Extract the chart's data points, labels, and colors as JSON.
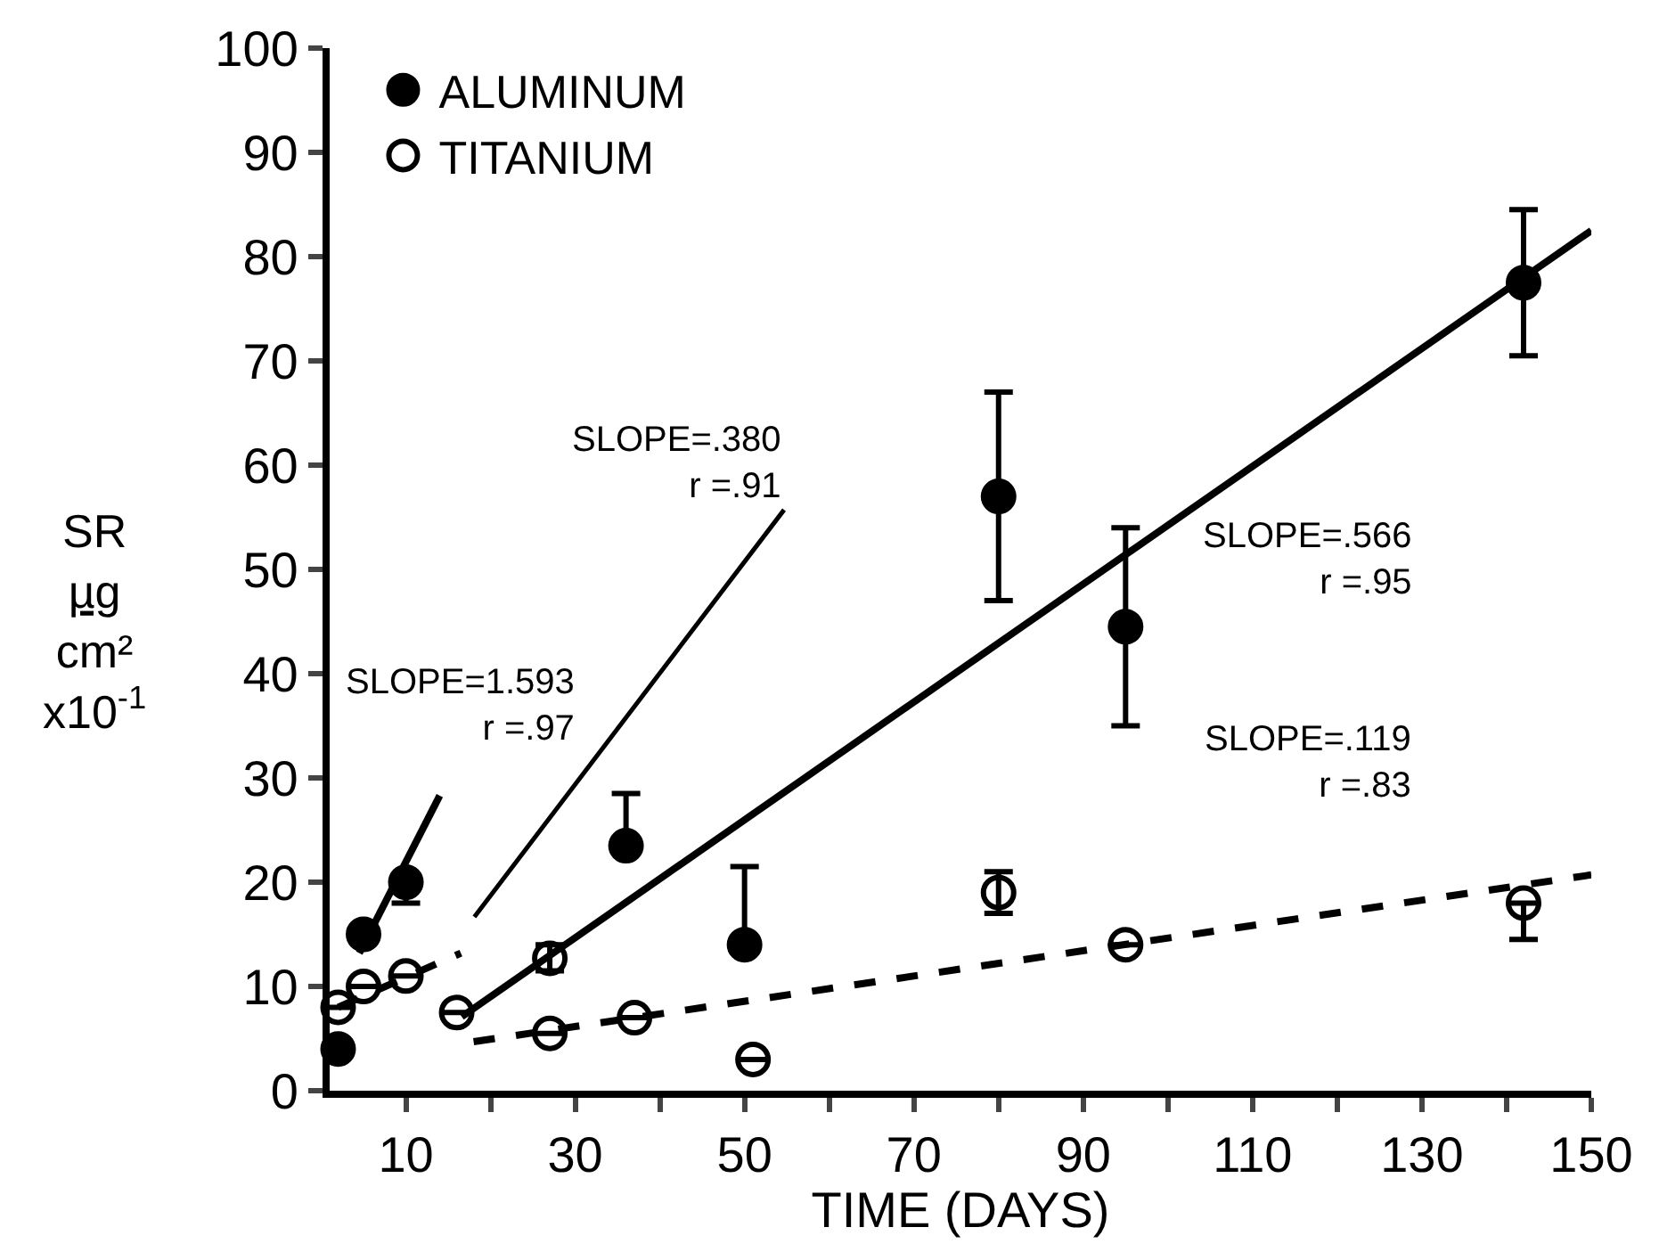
{
  "chart_data": {
    "type": "scatter",
    "xlabel": "TIME (DAYS)",
    "ylabel": "SR\nµg\ncm²\nx10$^{-1}$",
    "xlim": [
      1,
      150
    ],
    "ylim": [
      0,
      100
    ],
    "xticks": [
      10,
      {
        "value": 20,
        "label": null
      },
      30,
      {
        "value": 40,
        "label": null
      },
      50,
      {
        "value": 60,
        "label": null
      },
      70,
      {
        "value": 80,
        "label": null
      },
      90,
      {
        "value": 100,
        "label": null
      },
      110,
      {
        "value": 120,
        "label": null
      },
      130,
      {
        "value": 140,
        "label": null
      },
      150
    ],
    "yticks": [
      0,
      10,
      20,
      30,
      40,
      50,
      60,
      70,
      80,
      90,
      100
    ],
    "legend": "top left",
    "series": [
      {
        "name": "ALUMINUM",
        "marker": "circle",
        "color": "#000000",
        "x": [
          2,
          5,
          10,
          36,
          50,
          80,
          95,
          142
        ],
        "values": [
          4,
          15,
          20,
          23.5,
          14,
          57,
          44.5,
          77.5
        ],
        "errors": [
          null,
          null,
          [
            18,
            20
          ],
          [
            23.5,
            28.5
          ],
          [
            14,
            21.5
          ],
          [
            47,
            67
          ],
          [
            35,
            54
          ],
          [
            70.5,
            84.5
          ]
        ]
      },
      {
        "name": "TITANIUM",
        "marker": "circle-open",
        "color": "#000000",
        "x": [
          2,
          5,
          10,
          16,
          27,
          27,
          37,
          51,
          80,
          95,
          142
        ],
        "values": [
          8,
          10,
          11,
          7.5,
          12.7,
          5.5,
          7,
          3,
          19,
          14,
          18
        ],
        "errors": [
          null,
          null,
          null,
          null,
          [
            11.5,
            14
          ],
          null,
          null,
          null,
          [
            17,
            21
          ],
          null,
          [
            14.5,
            18
          ]
        ]
      },
      {
        "type": "line",
        "marker": "none",
        "line_style": "solid",
        "color": "#000000",
        "x": [
          4.5,
          14
        ],
        "values": [
          13.2,
          28.3
        ]
      },
      {
        "type": "line",
        "marker": "none",
        "line_style": "solid",
        "color": "#000000",
        "x": [
          16.6,
          150
        ],
        "values": [
          7.1,
          82.5
        ]
      },
      {
        "type": "line",
        "marker": "none",
        "line_style": "dashed",
        "color": "#000000",
        "x": [
          2,
          16.5
        ],
        "values": [
          8,
          13.2
        ]
      },
      {
        "type": "line",
        "marker": "none",
        "line_style": "dashed",
        "color": "#000000",
        "x": [
          18,
          150
        ],
        "values": [
          4.7,
          20.7
        ]
      }
    ],
    "annotations": [
      "SLOPE=.380\nr =.91",
      "SLOPE=1.593\nr =.97",
      "SLOPE=.566\nr =.95",
      "SLOPE=.119\nr =.83"
    ]
  }
}
